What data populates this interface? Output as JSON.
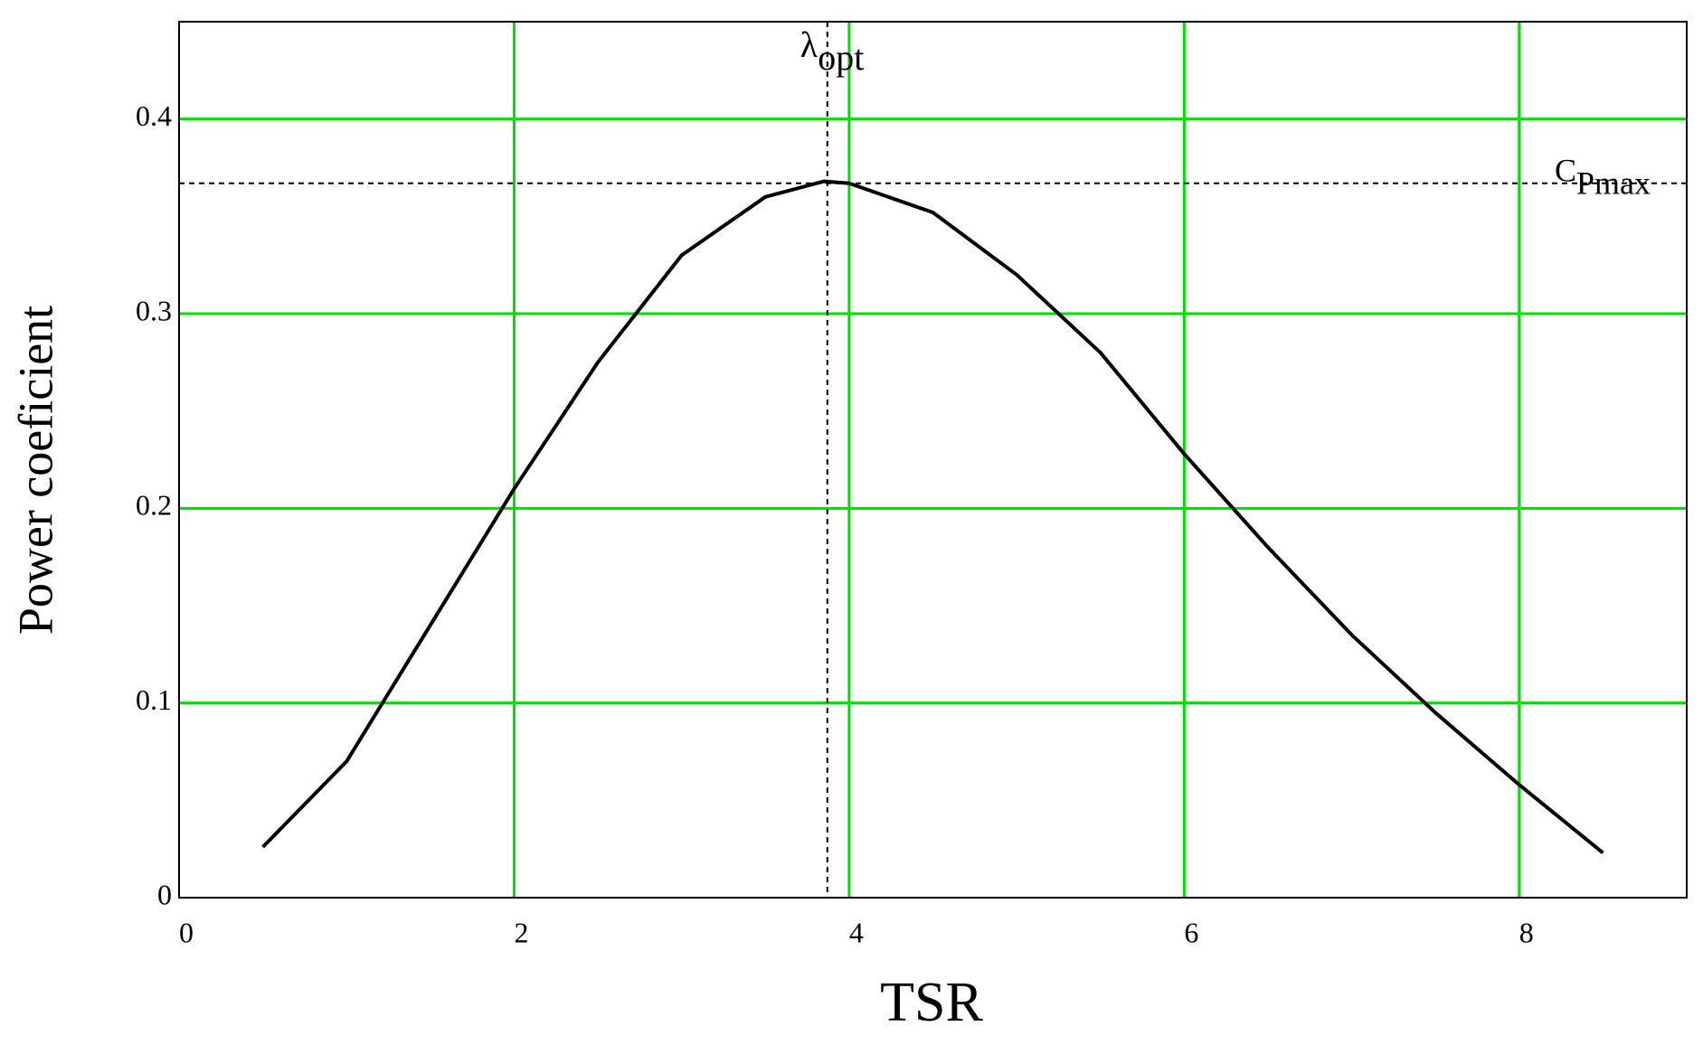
{
  "chart_data": {
    "type": "line",
    "x_label": "TSR",
    "y_label": "Power coeficient",
    "x": [
      0.5,
      1.0,
      1.2,
      1.5,
      2.0,
      2.5,
      3.0,
      3.5,
      3.85,
      4.0,
      4.5,
      5.0,
      5.5,
      6.0,
      6.5,
      7.0,
      7.5,
      8.0,
      8.5
    ],
    "series": [
      {
        "color": "#000000",
        "values": [
          0.026,
          0.07,
          0.098,
          0.14,
          0.21,
          0.275,
          0.33,
          0.36,
          0.368,
          0.367,
          0.352,
          0.32,
          0.28,
          0.228,
          0.18,
          0.135,
          0.095,
          0.058,
          0.023
        ]
      }
    ],
    "xlim": [
      0,
      9
    ],
    "ylim": [
      0,
      0.45
    ],
    "xticks": [
      0,
      2,
      4,
      6,
      8
    ],
    "yticks": [
      0,
      0.1,
      0.2,
      0.3,
      0.4
    ],
    "grid": true,
    "grid_color": "#00dd00",
    "annotations": [
      {
        "text": "λ",
        "sub": "opt",
        "x": 3.87
      },
      {
        "text": "C",
        "sub": "Pmax",
        "y": 0.367
      }
    ]
  }
}
